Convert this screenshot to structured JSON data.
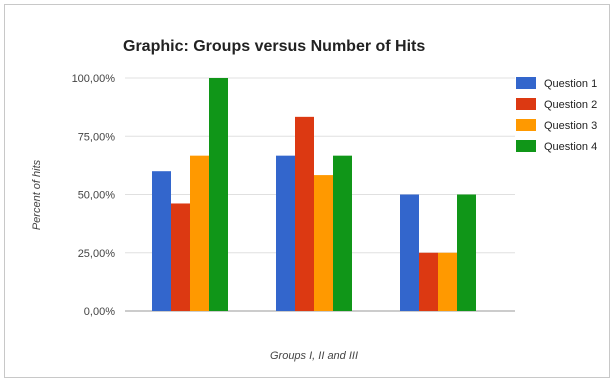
{
  "chart_data": {
    "type": "bar",
    "title": "Graphic: Groups versus Number of Hits",
    "xlabel": "Groups I, II and III",
    "ylabel": "Percent of hits",
    "categories": [
      "I",
      "II",
      "III"
    ],
    "show_category_labels": false,
    "ylim": [
      0,
      100
    ],
    "yticks": [
      {
        "value": 0,
        "label": "0,00%"
      },
      {
        "value": 25,
        "label": "25,00%"
      },
      {
        "value": 50,
        "label": "50,00%"
      },
      {
        "value": 75,
        "label": "75,00%"
      },
      {
        "value": 100,
        "label": "100,00%"
      }
    ],
    "grid": true,
    "legend_position": "right",
    "series": [
      {
        "name": "Question 1",
        "color": "#3366cc",
        "values": [
          60,
          66.67,
          50
        ]
      },
      {
        "name": "Question 2",
        "color": "#dc3912",
        "values": [
          46.15,
          83.33,
          25
        ]
      },
      {
        "name": "Question 3",
        "color": "#ff9900",
        "values": [
          66.67,
          58.33,
          25
        ]
      },
      {
        "name": "Question 4",
        "color": "#109618",
        "values": [
          100,
          66.67,
          50
        ]
      }
    ]
  }
}
